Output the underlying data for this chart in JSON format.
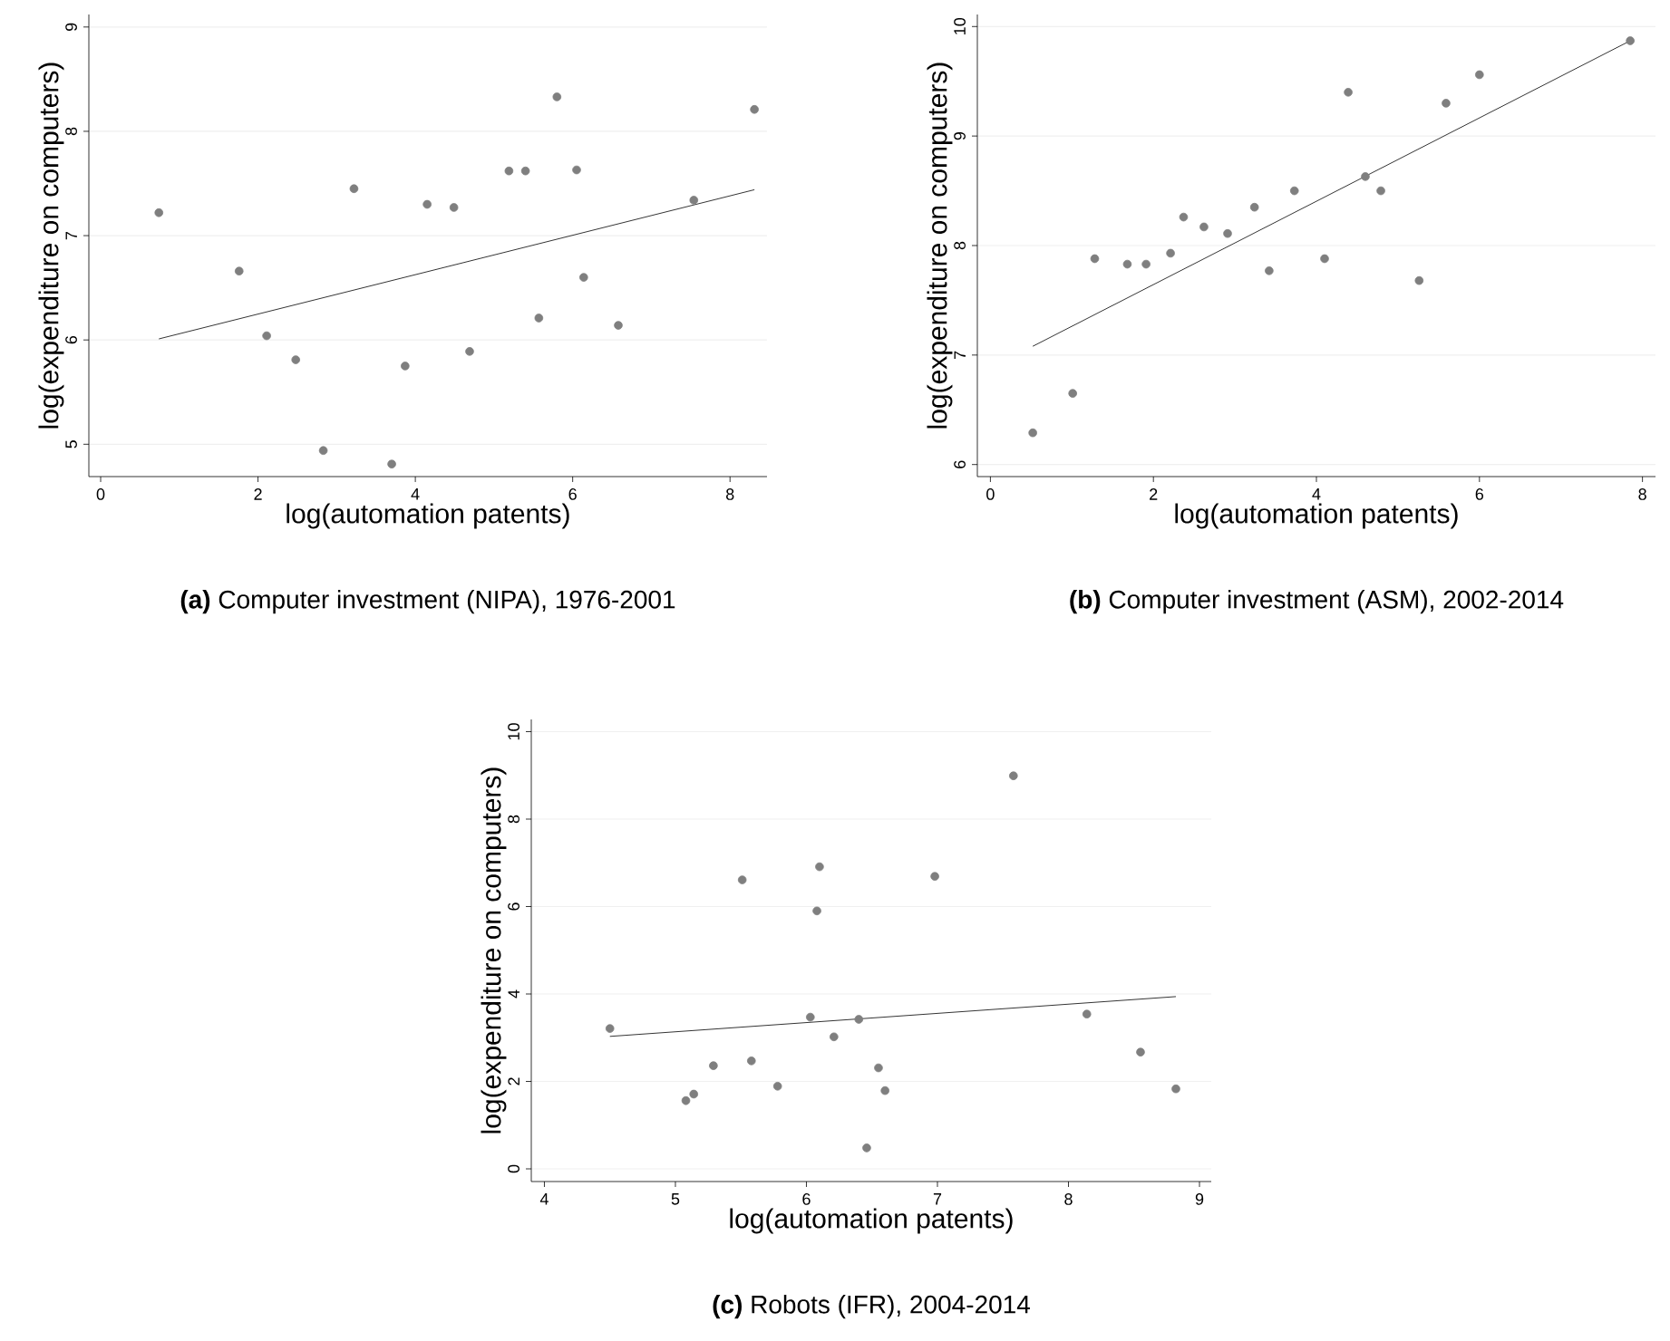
{
  "chart_data": [
    {
      "type": "scatter",
      "title": "**(a)** Computer investment (NIPA), 1976-2001",
      "xlabel": "log(automation patents)",
      "ylabel": "log(expenditure on computers)",
      "xlim": [
        -0.15,
        8.47
      ],
      "ylim": [
        4.69,
        9.12
      ],
      "xticks": [
        0,
        2,
        4,
        6,
        8
      ],
      "yticks": [
        5,
        6,
        7,
        8,
        9
      ],
      "grid": "y",
      "marker": "circle",
      "series": [
        {
          "color": "#7f7f7f",
          "x": [
            0.74,
            1.76,
            2.11,
            2.48,
            2.83,
            3.22,
            3.7,
            3.87,
            4.15,
            4.49,
            4.69,
            5.19,
            5.4,
            5.57,
            5.8,
            6.05,
            6.14,
            6.58,
            7.54,
            8.31
          ],
          "values": [
            7.22,
            6.66,
            6.04,
            5.81,
            4.94,
            7.45,
            4.81,
            5.75,
            7.3,
            7.27,
            5.89,
            7.62,
            7.62,
            6.21,
            8.33,
            7.63,
            6.6,
            6.14,
            7.34,
            8.21
          ]
        },
        {
          "type": "line",
          "color": "#000000",
          "marker": "none",
          "x": [
            0.74,
            8.31
          ],
          "values": [
            6.01,
            7.44
          ]
        }
      ]
    },
    {
      "type": "scatter",
      "title": "**(b)** Computer investment (ASM), 2002-2014",
      "xlabel": "log(automation patents)",
      "ylabel": "log(expenditure on computers)",
      "xlim": [
        -0.16,
        8.16
      ],
      "ylim": [
        5.89,
        10.11
      ],
      "xticks": [
        0,
        2,
        4,
        6,
        8
      ],
      "yticks": [
        6,
        7,
        8,
        9,
        10
      ],
      "grid": "y",
      "marker": "circle",
      "series": [
        {
          "color": "#7f7f7f",
          "x": [
            0.52,
            1.01,
            1.28,
            1.68,
            1.91,
            2.21,
            2.37,
            2.62,
            2.91,
            3.24,
            3.42,
            3.73,
            4.1,
            4.39,
            4.6,
            4.79,
            5.26,
            5.59,
            6.0,
            7.85
          ],
          "values": [
            6.29,
            6.65,
            7.88,
            7.83,
            7.83,
            7.93,
            8.26,
            8.17,
            8.11,
            8.35,
            7.77,
            8.5,
            7.88,
            9.4,
            8.63,
            8.5,
            7.68,
            9.3,
            9.56,
            9.87
          ]
        },
        {
          "type": "line",
          "color": "#000000",
          "marker": "none",
          "x": [
            0.52,
            7.85
          ],
          "values": [
            7.08,
            9.87
          ]
        }
      ]
    },
    {
      "type": "scatter",
      "title": "**(c)** Robots (IFR), 2004-2014",
      "xlabel": "log(automation patents)",
      "ylabel": "log(expenditure on computers)",
      "xlim": [
        3.9,
        9.09
      ],
      "ylim": [
        -0.29,
        10.28
      ],
      "xticks": [
        4,
        5,
        6,
        7,
        8,
        9
      ],
      "yticks": [
        0,
        2,
        4,
        6,
        8,
        10
      ],
      "grid": "y",
      "marker": "circle",
      "series": [
        {
          "color": "#7f7f7f",
          "x": [
            4.5,
            5.08,
            5.14,
            5.29,
            5.51,
            5.58,
            5.78,
            6.03,
            6.08,
            6.1,
            6.21,
            6.4,
            6.46,
            6.55,
            6.6,
            6.98,
            7.58,
            8.14,
            8.55,
            8.82
          ],
          "values": [
            3.21,
            1.56,
            1.71,
            2.36,
            6.61,
            2.47,
            1.89,
            3.47,
            5.9,
            6.91,
            3.02,
            3.42,
            0.48,
            2.31,
            1.79,
            6.69,
            8.99,
            3.54,
            2.67,
            1.83
          ]
        },
        {
          "type": "line",
          "color": "#000000",
          "marker": "none",
          "x": [
            4.5,
            8.82
          ],
          "values": [
            3.03,
            3.94
          ]
        }
      ]
    }
  ]
}
